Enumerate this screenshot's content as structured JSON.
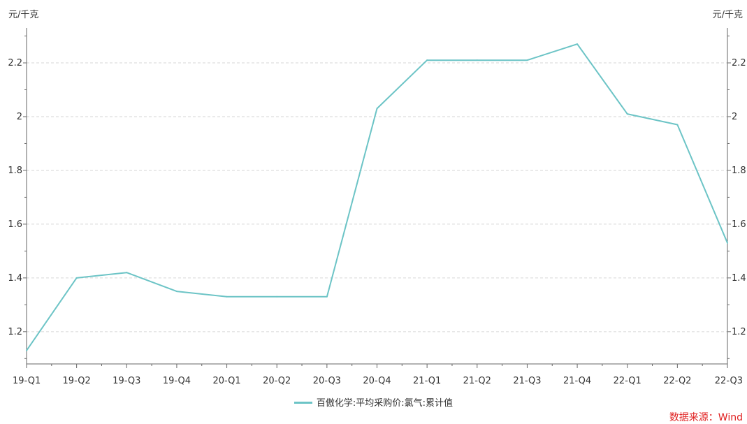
{
  "chart_data": {
    "type": "line",
    "title": "",
    "xlabel": "",
    "y_unit_left": "元/千克",
    "y_unit_right": "元/千克",
    "ylim": [
      1.08,
      2.33
    ],
    "y_ticks": [
      1.2,
      1.4,
      1.6,
      1.8,
      2,
      2.2
    ],
    "y_tick_labels": [
      "1.2",
      "1.4",
      "1.6",
      "1.8",
      "2",
      "2.2"
    ],
    "grid": true,
    "legend_position": "bottom",
    "categories": [
      "19-Q1",
      "19-Q2",
      "19-Q3",
      "19-Q4",
      "20-Q1",
      "20-Q2",
      "20-Q3",
      "20-Q4",
      "21-Q1",
      "21-Q2",
      "21-Q3",
      "21-Q4",
      "22-Q1",
      "22-Q2",
      "22-Q3"
    ],
    "series": [
      {
        "name": "百傲化学:平均采购价:氯气:累计值",
        "color": "#6cc4c6",
        "values": [
          1.13,
          1.4,
          1.42,
          1.35,
          1.33,
          1.33,
          1.33,
          2.03,
          2.21,
          2.21,
          2.21,
          2.27,
          2.01,
          1.97,
          1.53
        ]
      }
    ]
  },
  "source_note": "数据来源：Wind"
}
